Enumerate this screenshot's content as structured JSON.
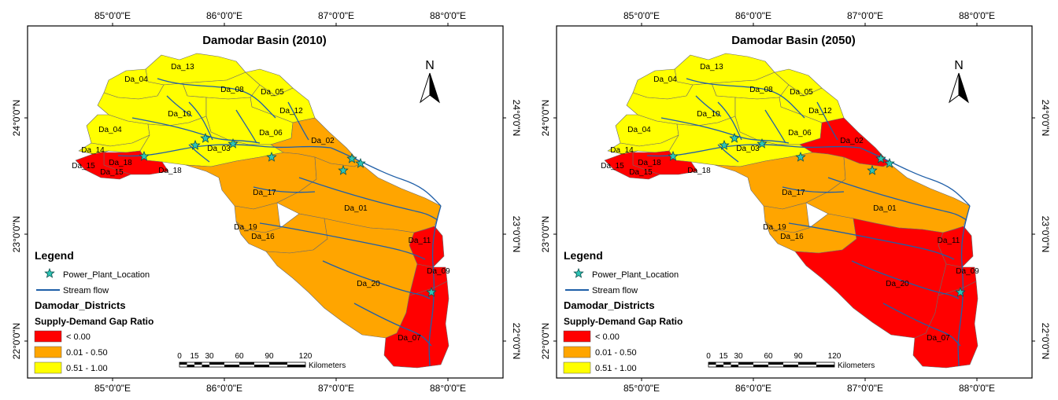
{
  "colors": {
    "negative": "#ff0000",
    "mid": "#ffa500",
    "high": "#ffff00",
    "stream": "#1f5fa8",
    "plant": "#2ec4b6",
    "border": "#6b6b6b"
  },
  "axes": {
    "top_ticks": [
      "85°0'0\"E",
      "86°0'0\"E",
      "87°0'0\"E",
      "88°0'0\"E"
    ],
    "bottom_ticks": [
      "85°0'0\"E",
      "86°0'0\"E",
      "87°0'0\"E",
      "88°0'0\"E"
    ],
    "left_ticks": [
      "24°0'0\"N",
      "23°0'0\"N",
      "22°0'0\"N"
    ],
    "right_ticks": [
      "24°0'0\"N",
      "23°0'0\"N",
      "22°0'0\"N"
    ]
  },
  "north_label": "N",
  "legend": {
    "title": "Legend",
    "plant_label": "Power_Plant_Location",
    "stream_label": "Stream flow",
    "districts_title": "Damodar_Districts",
    "ratio_title": "Supply-Demand Gap Ratio",
    "classes": [
      {
        "label": "< 0.00",
        "color_key": "negative"
      },
      {
        "label": "0.01 - 0.50",
        "color_key": "mid"
      },
      {
        "label": "0.51 - 1.00",
        "color_key": "high"
      }
    ]
  },
  "scalebar": {
    "ticks": [
      "0",
      "15",
      "30",
      "60",
      "90",
      "120"
    ],
    "unit": "Kilometers"
  },
  "maps": [
    {
      "title": "Damodar Basin (2010)",
      "districts": [
        {
          "id": "Da_13",
          "class": "high"
        },
        {
          "id": "Da_04n",
          "class": "high"
        },
        {
          "id": "Da_08",
          "class": "high"
        },
        {
          "id": "Da_05",
          "class": "high"
        },
        {
          "id": "Da_12",
          "class": "high"
        },
        {
          "id": "Da_10",
          "class": "high"
        },
        {
          "id": "Da_04s",
          "class": "high"
        },
        {
          "id": "Da_06",
          "class": "high"
        },
        {
          "id": "Da_03",
          "class": "high"
        },
        {
          "id": "Da_14",
          "class": "high"
        },
        {
          "id": "Da_18",
          "class": "negative"
        },
        {
          "id": "Da_15",
          "class": "negative"
        },
        {
          "id": "Da_02",
          "class": "mid"
        },
        {
          "id": "Da_17",
          "class": "mid"
        },
        {
          "id": "Da_01",
          "class": "mid"
        },
        {
          "id": "Da_19",
          "class": "mid"
        },
        {
          "id": "Da_16",
          "class": "mid"
        },
        {
          "id": "Da_20",
          "class": "mid"
        },
        {
          "id": "Da_11",
          "class": "negative"
        },
        {
          "id": "Da_09",
          "class": "negative"
        },
        {
          "id": "Da_07",
          "class": "negative"
        }
      ]
    },
    {
      "title": "Damodar Basin (2050)",
      "districts": [
        {
          "id": "Da_13",
          "class": "high"
        },
        {
          "id": "Da_04n",
          "class": "high"
        },
        {
          "id": "Da_08",
          "class": "high"
        },
        {
          "id": "Da_05",
          "class": "high"
        },
        {
          "id": "Da_12",
          "class": "high"
        },
        {
          "id": "Da_10",
          "class": "high"
        },
        {
          "id": "Da_04s",
          "class": "high"
        },
        {
          "id": "Da_06",
          "class": "high"
        },
        {
          "id": "Da_03",
          "class": "high"
        },
        {
          "id": "Da_14",
          "class": "high"
        },
        {
          "id": "Da_18",
          "class": "negative"
        },
        {
          "id": "Da_15",
          "class": "negative"
        },
        {
          "id": "Da_02",
          "class": "negative"
        },
        {
          "id": "Da_17",
          "class": "mid"
        },
        {
          "id": "Da_01",
          "class": "mid"
        },
        {
          "id": "Da_19",
          "class": "mid"
        },
        {
          "id": "Da_16",
          "class": "mid"
        },
        {
          "id": "Da_20",
          "class": "negative"
        },
        {
          "id": "Da_11",
          "class": "negative"
        },
        {
          "id": "Da_09",
          "class": "negative"
        },
        {
          "id": "Da_07",
          "class": "negative"
        }
      ]
    }
  ],
  "district_labels": [
    "Da_13",
    "Da_04",
    "Da_08",
    "Da_05",
    "Da_12",
    "Da_10",
    "Da_04",
    "Da_06",
    "Da_03",
    "Da_02",
    "Da_14",
    "Da_15",
    "Da_18",
    "Da_15",
    "Da_18",
    "Da_17",
    "Da_01",
    "Da_19",
    "Da_16",
    "Da_11",
    "Da_20",
    "Da_09",
    "Da_07"
  ]
}
